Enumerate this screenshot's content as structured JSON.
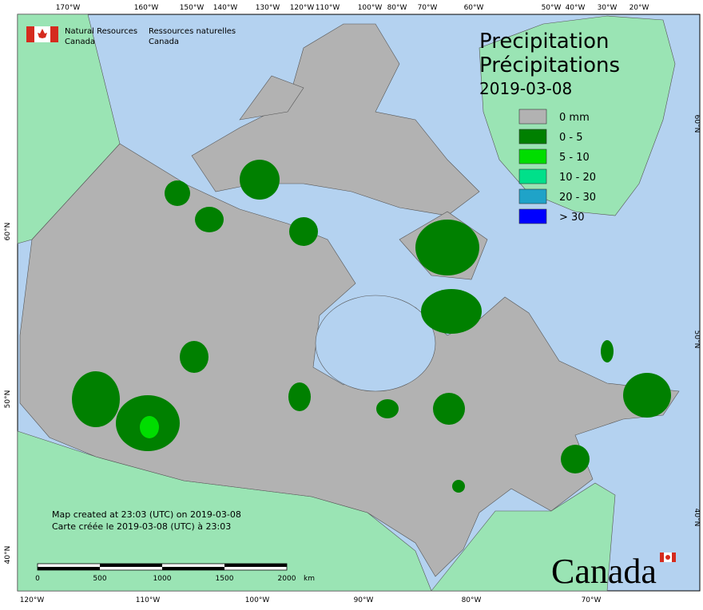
{
  "header": {
    "agency_en": [
      "Natural Resources",
      "Canada"
    ],
    "agency_fr": [
      "Ressources naturelles",
      "Canada"
    ]
  },
  "title": {
    "en": "Precipitation",
    "fr": "Précipitations",
    "date": "2019-03-08"
  },
  "legend": [
    {
      "label": "0 mm",
      "color": "#b2b2b2"
    },
    {
      "label": "0 - 5",
      "color": "#008000"
    },
    {
      "label": "5 - 10",
      "color": "#00dd00"
    },
    {
      "label": "10 - 20",
      "color": "#00e08a"
    },
    {
      "label": "20 - 30",
      "color": "#1fa3c8"
    },
    {
      "label": "> 30",
      "color": "#0000ff"
    }
  ],
  "graticule": {
    "top": [
      "170°W",
      "160°W",
      "150°W",
      "140°W",
      "130°W",
      "120°W",
      "110°W",
      "100°W",
      "80°W",
      "70°W",
      "60°W",
      "50°W",
      "40°W",
      "30°W",
      "20°W"
    ],
    "bottom": [
      "120°W",
      "110°W",
      "100°W",
      "90°W",
      "80°W",
      "70°W"
    ],
    "left": [
      "60°N",
      "50°N",
      "40°N"
    ],
    "right": [
      "60°N",
      "50°N",
      "40°N"
    ]
  },
  "footer": {
    "created_en": "Map created at 23:03 (UTC) on 2019-03-08",
    "created_fr": "Carte créée le 2019-03-08 (UTC) à 23:03"
  },
  "scale": {
    "labels": [
      "0",
      "500",
      "1000",
      "1500",
      "2000"
    ],
    "unit": "km"
  },
  "wordmark": "Canada"
}
